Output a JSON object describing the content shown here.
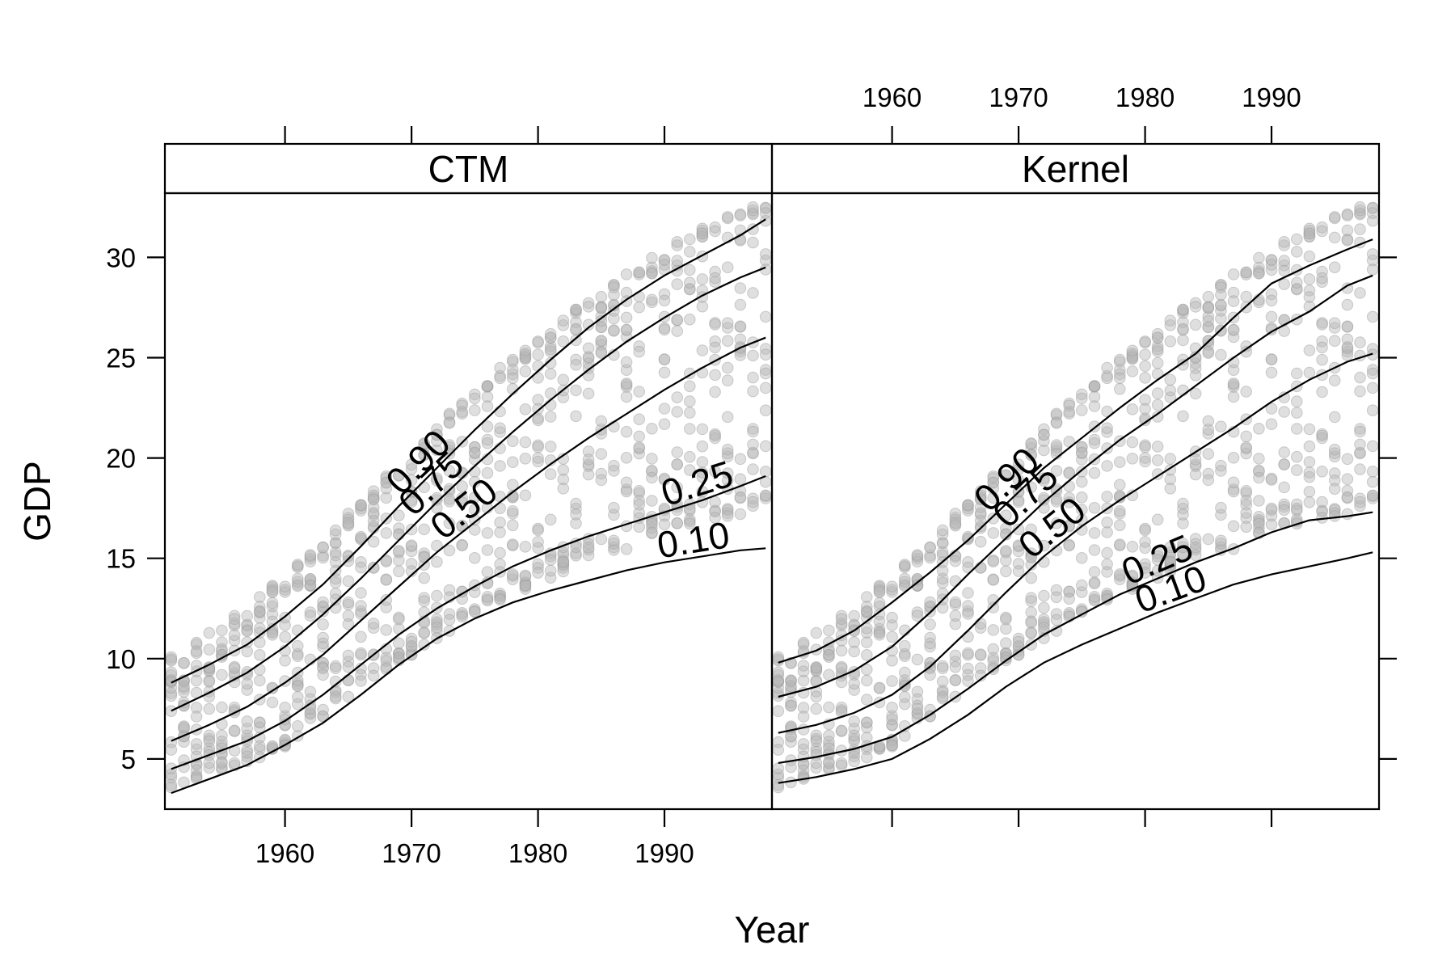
{
  "chart_data": {
    "type": "scatter",
    "xlabel": "Year",
    "ylabel": "GDP",
    "xlim": [
      1950.5,
      1998.5
    ],
    "ylim": [
      2.5,
      33.2
    ],
    "x_ticks": [
      1960,
      1970,
      1980,
      1990
    ],
    "y_ticks": [
      5,
      10,
      15,
      20,
      25,
      30
    ],
    "grid": false,
    "legend": "none",
    "point_color": "#b9b9b9",
    "line_color": "#000000",
    "point_years": [
      1951,
      1952,
      1953,
      1954,
      1955,
      1956,
      1957,
      1958,
      1959,
      1960,
      1961,
      1962,
      1963,
      1964,
      1965,
      1966,
      1967,
      1968,
      1969,
      1970,
      1971,
      1972,
      1973,
      1974,
      1975,
      1976,
      1977,
      1978,
      1979,
      1980,
      1981,
      1982,
      1983,
      1984,
      1985,
      1986,
      1987,
      1988,
      1989,
      1990,
      1991,
      1992,
      1993,
      1994,
      1995,
      1996,
      1997,
      1998
    ],
    "point_bands": {
      "low": [
        3.4,
        3.8,
        4.1,
        4.3,
        4.5,
        4.7,
        4.9,
        5.2,
        5.4,
        5.8,
        6.2,
        6.7,
        7.2,
        7.7,
        8.2,
        8.7,
        9.2,
        9.6,
        10.0,
        10.4,
        10.8,
        11.2,
        11.6,
        12.0,
        12.3,
        12.7,
        13.0,
        13.3,
        13.6,
        13.9,
        14.2,
        14.5,
        14.8,
        15.1,
        15.3,
        15.5,
        15.7,
        15.9,
        16.1,
        16.3,
        16.5,
        16.7,
        16.9,
        17.0,
        17.2,
        17.4,
        17.6,
        17.8
      ],
      "high": [
        10.0,
        10.4,
        10.8,
        11.2,
        11.6,
        12.0,
        12.5,
        13.0,
        13.5,
        14.0,
        14.6,
        15.2,
        15.8,
        16.4,
        17.0,
        17.6,
        18.3,
        19.0,
        19.6,
        20.2,
        20.8,
        21.4,
        22.0,
        22.6,
        23.2,
        23.8,
        24.3,
        24.8,
        25.3,
        25.8,
        26.3,
        26.8,
        27.3,
        27.8,
        28.2,
        28.6,
        29.0,
        29.4,
        29.8,
        30.2,
        30.6,
        31.0,
        31.3,
        31.6,
        31.9,
        32.2,
        32.4,
        32.6
      ]
    },
    "panels": [
      {
        "strip": "CTM",
        "x_tick_labels_position": "bottom",
        "series": [
          {
            "label": "0.10",
            "x": [
              1951,
              1954,
              1957,
              1960,
              1963,
              1966,
              1969,
              1972,
              1975,
              1978,
              1981,
              1984,
              1987,
              1990,
              1993,
              1996,
              1998
            ],
            "y": [
              3.3,
              4.0,
              4.7,
              5.7,
              6.8,
              8.2,
              9.7,
              11.0,
              12.0,
              12.8,
              13.4,
              13.9,
              14.4,
              14.8,
              15.1,
              15.4,
              15.5
            ]
          },
          {
            "label": "0.25",
            "x": [
              1951,
              1954,
              1957,
              1960,
              1963,
              1966,
              1969,
              1972,
              1975,
              1978,
              1981,
              1984,
              1987,
              1990,
              1993,
              1996,
              1998
            ],
            "y": [
              4.5,
              5.2,
              5.9,
              6.9,
              8.2,
              9.7,
              11.2,
              12.5,
              13.6,
              14.6,
              15.4,
              16.1,
              16.7,
              17.3,
              17.9,
              18.6,
              19.1
            ]
          },
          {
            "label": "0.50",
            "x": [
              1951,
              1954,
              1957,
              1960,
              1963,
              1966,
              1969,
              1972,
              1975,
              1978,
              1981,
              1984,
              1987,
              1990,
              1993,
              1996,
              1998
            ],
            "y": [
              5.9,
              6.7,
              7.6,
              8.8,
              10.2,
              11.9,
              13.6,
              15.3,
              16.8,
              18.3,
              19.7,
              21.0,
              22.2,
              23.4,
              24.5,
              25.5,
              26.0
            ]
          },
          {
            "label": "0.75",
            "x": [
              1951,
              1954,
              1957,
              1960,
              1963,
              1966,
              1969,
              1972,
              1975,
              1978,
              1981,
              1984,
              1987,
              1990,
              1993,
              1996,
              1998
            ],
            "y": [
              7.4,
              8.3,
              9.3,
              10.6,
              12.2,
              14.0,
              15.9,
              17.8,
              19.6,
              21.3,
              22.9,
              24.4,
              25.8,
              27.0,
              28.1,
              29.0,
              29.5
            ]
          },
          {
            "label": "0.90",
            "x": [
              1951,
              1954,
              1957,
              1960,
              1963,
              1966,
              1969,
              1972,
              1975,
              1978,
              1981,
              1984,
              1987,
              1990,
              1993,
              1996,
              1998
            ],
            "y": [
              8.8,
              9.7,
              10.7,
              12.1,
              13.7,
              15.6,
              17.6,
              19.5,
              21.4,
              23.2,
              24.9,
              26.5,
              27.9,
              29.1,
              30.1,
              31.1,
              31.9
            ]
          }
        ]
      },
      {
        "strip": "Kernel",
        "x_tick_labels_position": "top",
        "series": [
          {
            "label": "0.10",
            "x": [
              1951,
              1954,
              1957,
              1960,
              1963,
              1966,
              1969,
              1972,
              1975,
              1978,
              1981,
              1984,
              1987,
              1990,
              1993,
              1996,
              1998
            ],
            "y": [
              3.8,
              4.1,
              4.5,
              5.0,
              6.0,
              7.2,
              8.6,
              9.8,
              10.7,
              11.5,
              12.3,
              13.0,
              13.7,
              14.2,
              14.6,
              15.0,
              15.3
            ]
          },
          {
            "label": "0.25",
            "x": [
              1951,
              1954,
              1957,
              1960,
              1963,
              1966,
              1969,
              1972,
              1975,
              1978,
              1981,
              1984,
              1987,
              1990,
              1993,
              1996,
              1998
            ],
            "y": [
              4.8,
              5.1,
              5.5,
              6.1,
              7.2,
              8.5,
              9.9,
              11.2,
              12.2,
              13.2,
              14.0,
              14.8,
              15.5,
              16.3,
              16.9,
              17.1,
              17.3
            ]
          },
          {
            "label": "0.50",
            "x": [
              1951,
              1954,
              1957,
              1960,
              1963,
              1966,
              1969,
              1972,
              1975,
              1978,
              1981,
              1984,
              1987,
              1990,
              1993,
              1996,
              1998
            ],
            "y": [
              6.3,
              6.7,
              7.3,
              8.2,
              9.6,
              11.4,
              13.3,
              15.1,
              16.6,
              17.9,
              19.1,
              20.3,
              21.5,
              22.8,
              23.9,
              24.8,
              25.2
            ]
          },
          {
            "label": "0.75",
            "x": [
              1951,
              1954,
              1957,
              1960,
              1963,
              1966,
              1969,
              1972,
              1975,
              1978,
              1981,
              1984,
              1987,
              1990,
              1993,
              1996,
              1998
            ],
            "y": [
              8.1,
              8.6,
              9.4,
              10.6,
              12.3,
              14.2,
              16.0,
              17.8,
              19.4,
              20.9,
              22.2,
              23.6,
              25.0,
              26.3,
              27.3,
              28.6,
              29.1
            ]
          },
          {
            "label": "0.90",
            "x": [
              1951,
              1954,
              1957,
              1960,
              1963,
              1966,
              1969,
              1972,
              1975,
              1978,
              1981,
              1984,
              1987,
              1990,
              1993,
              1996,
              1998
            ],
            "y": [
              9.8,
              10.4,
              11.4,
              12.8,
              14.3,
              15.9,
              17.7,
              19.5,
              21.0,
              22.5,
              23.9,
              25.2,
              27.0,
              28.7,
              29.6,
              30.4,
              30.9
            ]
          }
        ]
      }
    ]
  }
}
